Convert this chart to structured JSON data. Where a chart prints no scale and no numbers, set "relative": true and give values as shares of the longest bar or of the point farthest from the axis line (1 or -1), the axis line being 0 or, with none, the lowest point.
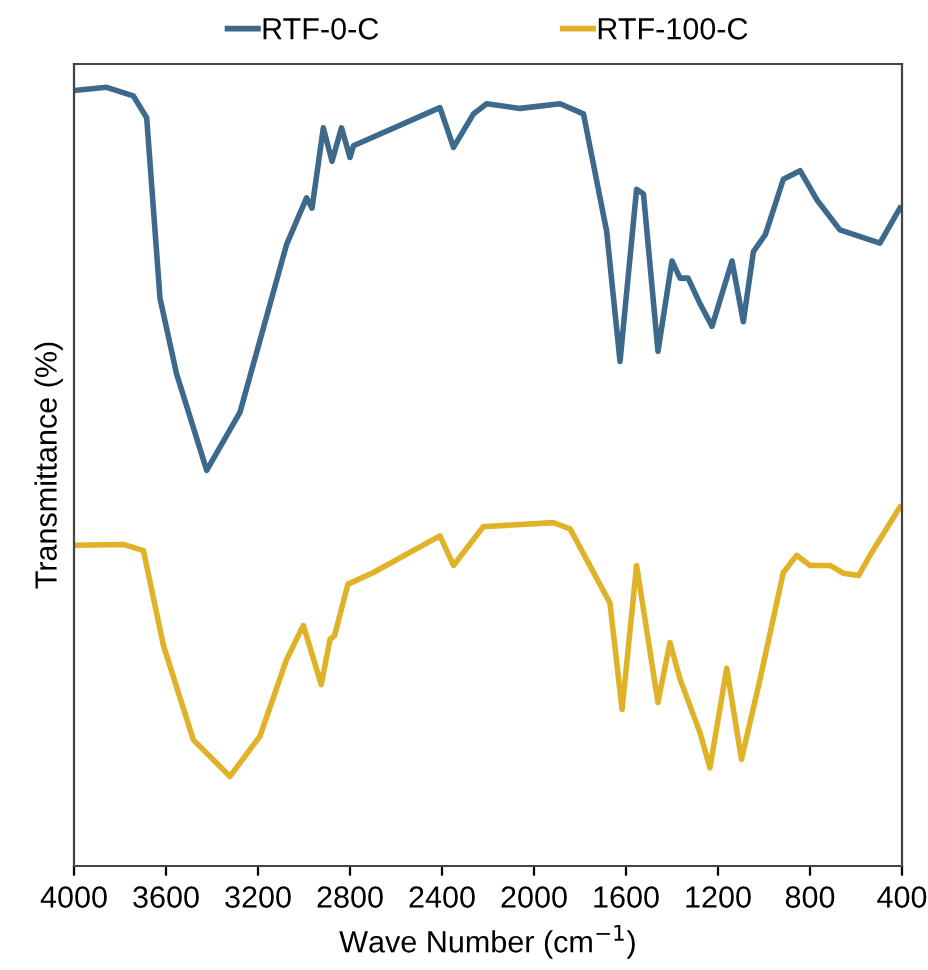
{
  "chart_data": {
    "type": "line",
    "relative": true,
    "xlabel": "Wave Number (cm$^{−1}$)",
    "ylabel": "Transmittance (%)",
    "xlim": [
      4000,
      400
    ],
    "xticks": [
      4000,
      3600,
      3200,
      2800,
      2400,
      2000,
      1600,
      1200,
      800,
      400
    ],
    "legend": "top",
    "grid": false,
    "tick_labels": "x",
    "series": [
      {
        "name": "RTF-0-C",
        "color": "#3d6a8c",
        "x": [
          4000,
          3858,
          3742,
          3684,
          3626,
          3554,
          3423,
          3278,
          3076,
          2989,
          2965,
          2916,
          2878,
          2837,
          2800,
          2785,
          2409,
          2350,
          2263,
          2206,
          2061,
          1887,
          1785,
          1684,
          1626,
          1554,
          1524,
          1461,
          1400,
          1365,
          1330,
          1278,
          1226,
          1139,
          1090,
          1046,
          994,
          916,
          843,
          771,
          670,
          496,
          409
        ],
        "values": [
          0.996,
          1.0,
          0.989,
          0.961,
          0.729,
          0.632,
          0.508,
          0.583,
          0.798,
          0.858,
          0.845,
          0.948,
          0.905,
          0.948,
          0.91,
          0.925,
          0.974,
          0.923,
          0.966,
          0.979,
          0.973,
          0.979,
          0.966,
          0.815,
          0.648,
          0.869,
          0.863,
          0.661,
          0.777,
          0.755,
          0.755,
          0.722,
          0.693,
          0.777,
          0.699,
          0.789,
          0.811,
          0.882,
          0.893,
          0.856,
          0.817,
          0.8,
          0.845
        ]
      },
      {
        "name": "RTF-100-C",
        "color": "#e0b227",
        "x": [
          4000,
          3785,
          3698,
          3611,
          3481,
          3322,
          3191,
          3076,
          3003,
          2925,
          2887,
          2867,
          2809,
          2698,
          2409,
          2350,
          2220,
          2206,
          1916,
          1843,
          1670,
          1617,
          1554,
          1461,
          1409,
          1365,
          1278,
          1235,
          1162,
          1098,
          1017,
          916,
          858,
          800,
          713,
          655,
          589,
          539,
          409
        ],
        "values": [
          0.412,
          0.413,
          0.405,
          0.283,
          0.162,
          0.115,
          0.167,
          0.265,
          0.309,
          0.233,
          0.291,
          0.296,
          0.362,
          0.377,
          0.424,
          0.386,
          0.436,
          0.436,
          0.441,
          0.433,
          0.338,
          0.201,
          0.386,
          0.21,
          0.287,
          0.24,
          0.171,
          0.126,
          0.254,
          0.137,
          0.24,
          0.377,
          0.399,
          0.386,
          0.386,
          0.376,
          0.373,
          0.399,
          0.461
        ]
      }
    ]
  }
}
